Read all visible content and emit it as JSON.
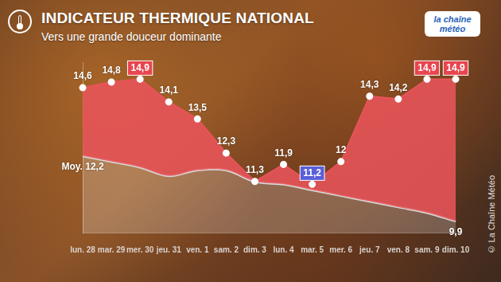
{
  "chart_data": {
    "type": "line",
    "title": "INDICATEUR THERMIQUE NATIONAL",
    "subtitle": "Vers une grande douceur dominante",
    "logo": "la chaîne météo",
    "source": "© La Chaîne Météo",
    "categories": [
      "lun. 28",
      "mar. 29",
      "mer. 30",
      "jeu. 31",
      "ven. 1",
      "sam. 2",
      "dim. 3",
      "lun. 4",
      "mar. 5",
      "mer. 6",
      "jeu. 7",
      "ven. 8",
      "sam. 9",
      "dim. 10"
    ],
    "series": [
      {
        "color": "#e8545a",
        "colors": [
          "#ffffff",
          "#ffffff",
          "#e8454f",
          "#ffffff",
          "#ffffff",
          "#ffffff",
          "#ffffff",
          "#ffffff",
          "#5a5fd8",
          "#ffffff",
          "#ffffff",
          "#ffffff",
          "#e8454f",
          "#e8454f"
        ],
        "values": [
          14.6,
          14.8,
          14.9,
          14.1,
          13.5,
          12.3,
          11.3,
          11.9,
          11.2,
          12,
          14.3,
          14.2,
          14.9,
          14.9
        ],
        "value_labels": [
          "14,6",
          "14,8",
          "14,9",
          "14,1",
          "13,5",
          "12,3",
          "11,3",
          "11,9",
          "11,2",
          "12",
          "14,3",
          "14,2",
          "14,9",
          "14,9"
        ]
      },
      {
        "color": "#d9d9d9",
        "values": [
          12.2,
          12.0,
          11.8,
          11.5,
          11.7,
          11.7,
          11.3,
          11.2,
          11.0,
          10.8,
          10.6,
          10.4,
          10.2,
          9.9
        ],
        "value_labels": [
          "Moy. 12,2",
          null,
          null,
          null,
          null,
          null,
          null,
          null,
          null,
          null,
          null,
          null,
          null,
          "9,9"
        ]
      }
    ],
    "ylim": [
      9.5,
      15.5
    ],
    "grid": false,
    "tick_labels": "x",
    "data_labels": true
  }
}
